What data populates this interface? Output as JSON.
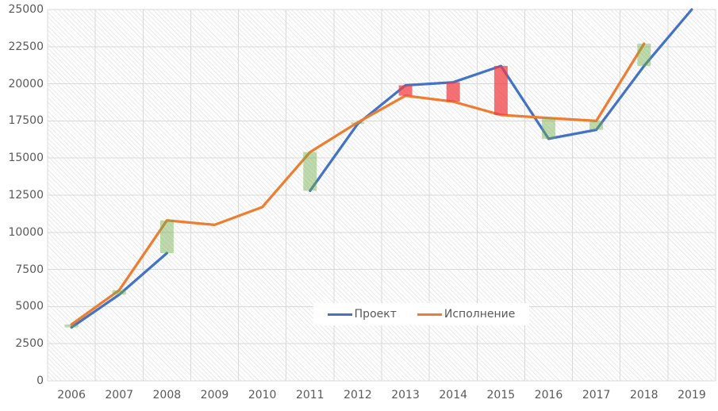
{
  "chart_data": {
    "type": "line",
    "title": "",
    "categories": [
      "2006",
      "2007",
      "2008",
      "2009",
      "2010",
      "2011",
      "2012",
      "2013",
      "2014",
      "2015",
      "2016",
      "2017",
      "2018",
      "2019"
    ],
    "series": [
      {
        "name": "Проект",
        "color": "#4472C4",
        "values": [
          3600,
          5800,
          8600,
          null,
          null,
          12800,
          17300,
          19900,
          20100,
          21200,
          16300,
          16900,
          21200,
          25000
        ]
      },
      {
        "name": "Исполнение",
        "color": "#ED7D31",
        "values": [
          3800,
          6100,
          10800,
          10500,
          11700,
          15400,
          17400,
          19200,
          18800,
          17900,
          17700,
          17500,
          22700,
          null
        ]
      }
    ],
    "y_axis": {
      "min": 0,
      "max": 25000,
      "step": 2500,
      "tick_labels": [
        "0",
        "2500",
        "5000",
        "7500",
        "10000",
        "12500",
        "15000",
        "17500",
        "20000",
        "22500",
        "25000"
      ]
    },
    "up_down_bars": {
      "up_fill": "rgba(112,173,71,0.45)",
      "down_fill": "rgba(240,60,65,0.72)"
    },
    "grid": {
      "show": true,
      "color": "#d9d9d9"
    },
    "legend": {
      "position": "bottom-center-overlay",
      "entries": [
        "Проект",
        "Исполнение"
      ]
    },
    "text_color": "#595959"
  }
}
